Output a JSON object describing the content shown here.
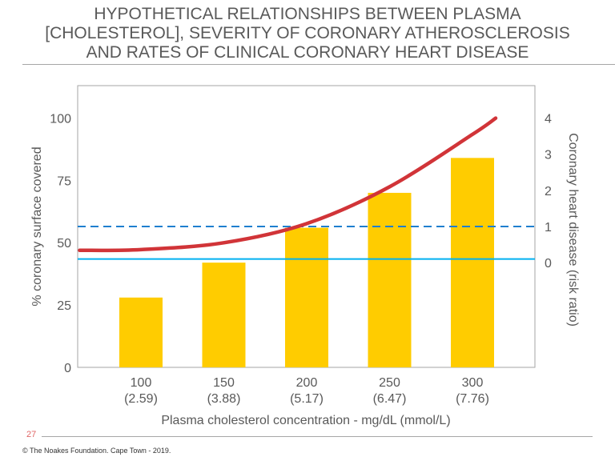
{
  "title_lines": [
    "HYPOTHETICAL RELATIONSHIPS BETWEEN PLASMA",
    "[CHOLESTEROL], SEVERITY OF CORONARY ATHEROSCLEROSIS",
    "AND RATES OF CLINICAL CORONARY HEART DISEASE"
  ],
  "page_number": "27",
  "copyright": "© The Noakes Foundation. Cape Town - 2019.",
  "colors": {
    "bar": "#ffcc00",
    "curve": "#d13438",
    "dashed": "#1f7fcf",
    "solid": "#00b0f0"
  },
  "chart_data": {
    "type": "bar",
    "xlabel": "Plasma cholesterol concentration - mg/dL (mmol/L)",
    "ylabel": "% coronary surface covered",
    "y2label": "Coronary heart disease (risk ratio)",
    "categories": [
      100,
      150,
      200,
      250,
      300
    ],
    "category_labels": [
      "100",
      "150",
      "200",
      "250",
      "300"
    ],
    "category_sublabels": [
      "(2.59)",
      "(3.88)",
      "(5.17)",
      "(6.47)",
      "(7.76)"
    ],
    "values": [
      28,
      42,
      56,
      70,
      84
    ],
    "ylim": [
      0,
      113
    ],
    "yticks": [
      0,
      25,
      50,
      75,
      100
    ],
    "y2lim": [
      -2.9,
      4.9
    ],
    "y2ticks": [
      0,
      1,
      2,
      3,
      4
    ],
    "risk_curve": [
      [
        63,
        0.34
      ],
      [
        100,
        0.36
      ],
      [
        150,
        0.55
      ],
      [
        200,
        1.08
      ],
      [
        250,
        2.1
      ],
      [
        300,
        3.55
      ],
      [
        314,
        4.0
      ]
    ],
    "reference_lines": [
      {
        "style": "dashed",
        "y2": 1
      },
      {
        "style": "solid",
        "y2": 0.1
      }
    ]
  }
}
